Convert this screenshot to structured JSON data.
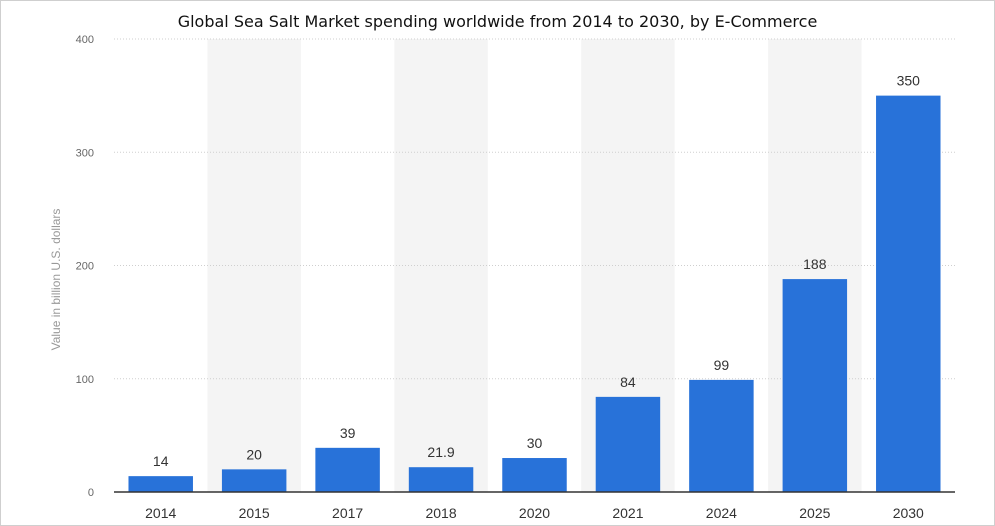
{
  "chart_data": {
    "type": "bar",
    "title": "Global Sea Salt Market spending worldwide from 2014 to 2030, by E-Commerce",
    "xlabel": "",
    "ylabel": "Value in billion U.S. dollars",
    "categories": [
      "2014",
      "2015",
      "2017",
      "2018",
      "2020",
      "2021",
      "2024",
      "2025",
      "2030"
    ],
    "values": [
      14,
      20,
      39,
      21.9,
      30,
      84,
      99,
      188,
      350
    ],
    "value_labels": [
      "14",
      "20",
      "39",
      "21.9",
      "30",
      "84",
      "99",
      "188",
      "350"
    ],
    "ylim": [
      0,
      400
    ],
    "yticks": [
      0,
      100,
      200,
      300,
      400
    ],
    "grid": true,
    "legend": "none",
    "colors": {
      "bar": "#2872d9",
      "band": "#f4f4f4",
      "grid": "#cfcfcf",
      "axis": "#333333"
    }
  }
}
